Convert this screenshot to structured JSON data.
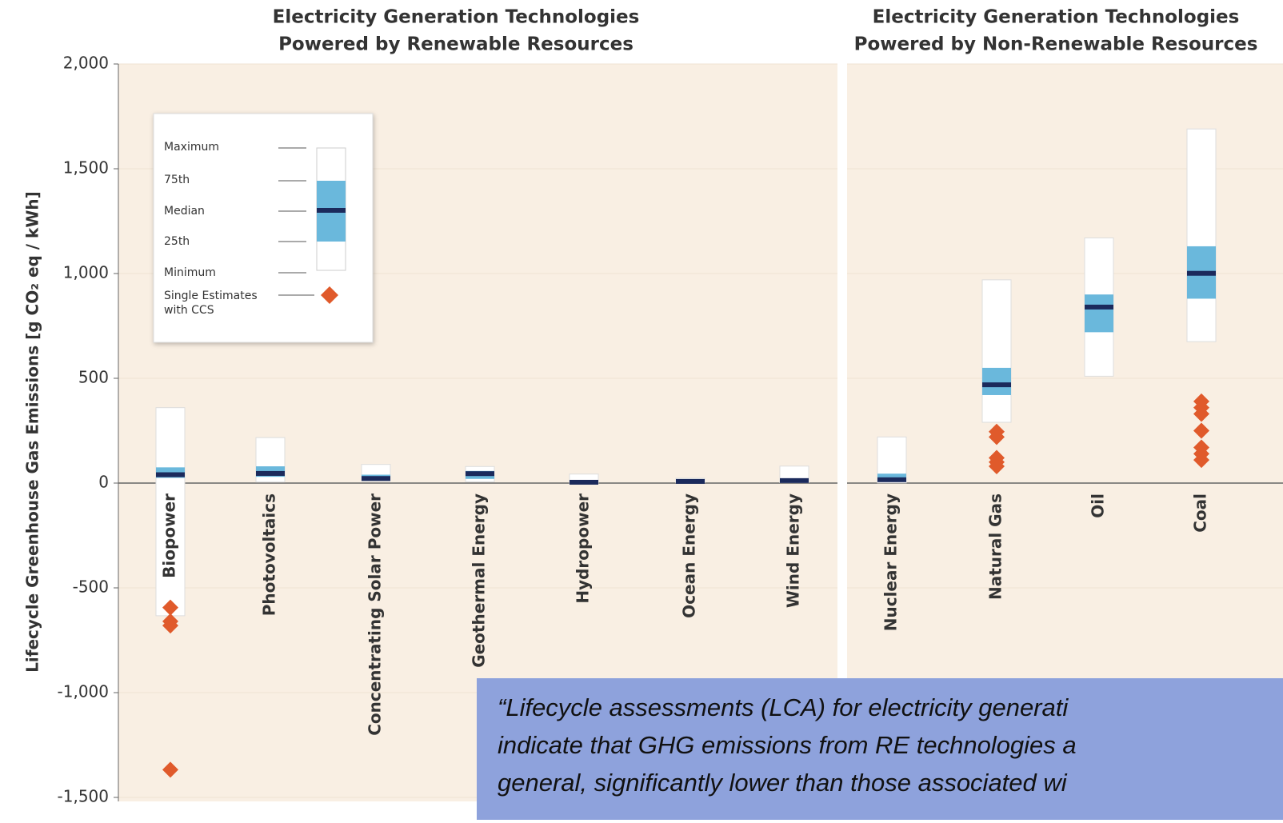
{
  "chart_data": [
    {
      "type": "box",
      "title": [
        "Electricity Generation Technologies",
        "Powered by Renewable Resources"
      ],
      "y_label": "Lifecycle Greenhouse Gas Emissions [g CO₂ eq / kWh]",
      "categories": [
        "Biopower",
        "Photovoltaics",
        "Concentrating Solar Power",
        "Geothermal Energy",
        "Hydropower",
        "Ocean Energy",
        "Wind Energy"
      ],
      "min": [
        -633,
        5,
        9,
        6,
        0,
        2,
        2
      ],
      "q1": [
        25,
        30,
        14,
        20,
        3,
        3,
        8
      ],
      "median": [
        40,
        46,
        22,
        45,
        4,
        8,
        12
      ],
      "q3": [
        75,
        80,
        40,
        58,
        12,
        12,
        16
      ],
      "max": [
        360,
        217,
        89,
        79,
        43,
        23,
        81
      ],
      "outliers": [
        [
          -594,
          -660,
          -680,
          -1368
        ],
        [],
        [],
        [],
        [],
        [],
        []
      ],
      "ylim": [
        -1500,
        2000
      ],
      "yticks": [
        {
          "value": 2000,
          "label": "2,000"
        },
        {
          "value": 1500,
          "label": "1,500"
        },
        {
          "value": 1000,
          "label": "1,000"
        },
        500,
        0,
        -500,
        {
          "value": -1000,
          "label": "-1,000"
        },
        {
          "value": -1500,
          "label": "-1,500"
        }
      ],
      "grid": true,
      "colors": {
        "whisker": "#ffffff",
        "box": "#6ab8dc",
        "median": "#1b2a5c",
        "outlier": "#e05a2b",
        "background": "#f9efe3"
      },
      "legend_labels": [
        "Maximum",
        "75th",
        "Median",
        "25th",
        "Minimum",
        "Single Estimates",
        "with CCS"
      ]
    },
    {
      "type": "box",
      "title": [
        "Electricity Generation Technologies",
        "Powered by Non-Renewable Resources"
      ],
      "categories": [
        "Nuclear Energy",
        "Natural Gas",
        "Oil",
        "Coal"
      ],
      "min": [
        1,
        290,
        510,
        675
      ],
      "q1": [
        8,
        420,
        720,
        880
      ],
      "median": [
        16,
        469,
        840,
        1001
      ],
      "q3": [
        45,
        550,
        900,
        1130
      ],
      "max": [
        220,
        970,
        1170,
        1690
      ],
      "outliers": [
        [],
        [
          245,
          220,
          120,
          100,
          80
        ],
        [],
        [
          390,
          360,
          330,
          250,
          170,
          140,
          110
        ]
      ],
      "ylim": [
        -1500,
        2000
      ],
      "yticks": [
        2000,
        1500,
        1000,
        500,
        0,
        -500,
        -1000,
        -1500
      ],
      "grid": true,
      "colors": {
        "whisker": "#ffffff",
        "box": "#6ab8dc",
        "median": "#1b2a5c",
        "outlier": "#e05a2b",
        "background": "#f9efe3"
      }
    }
  ],
  "annotation": [
    "“Lifecycle assessments (LCA) for electricity generati",
    "indicate that GHG emissions from RE technologies a",
    "general, significantly lower than those associated wi"
  ]
}
